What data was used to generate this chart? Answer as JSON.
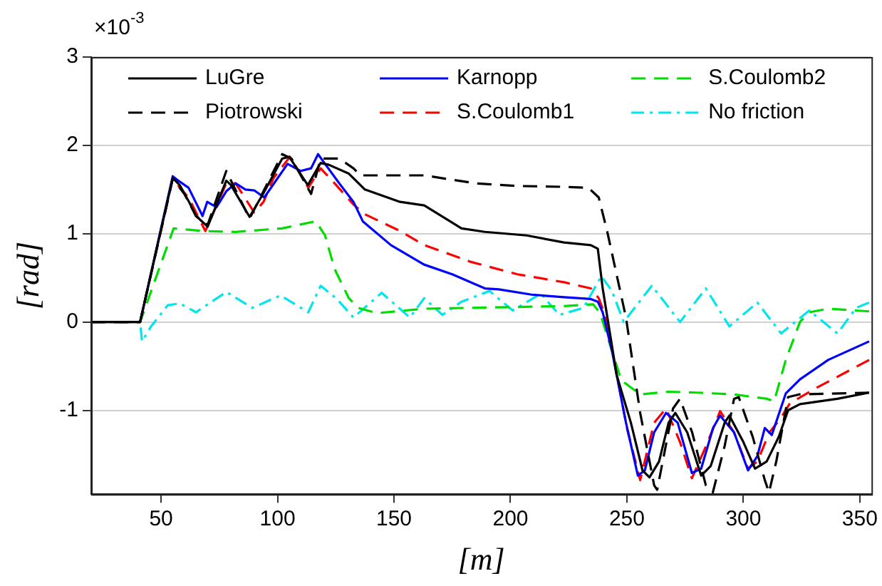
{
  "chart_data": {
    "type": "line",
    "xlabel": "[m]",
    "ylabel": "[rad]",
    "annotations": [
      "×10$^{-3}$"
    ],
    "xlim": [
      20,
      355
    ],
    "xticks": [
      50,
      100,
      150,
      200,
      250,
      300,
      350
    ],
    "ylim": [
      -1.95,
      3
    ],
    "yticks": [
      -1,
      0,
      1,
      2,
      3
    ],
    "grid": "y",
    "legend": "top",
    "marker": "none",
    "series": [
      {
        "name": "LuGre",
        "color": "#000000",
        "line_style": "solid",
        "x": [
          20,
          41,
          55,
          58,
          62,
          65,
          70,
          78,
          80,
          88,
          94,
          102,
          105,
          110,
          113,
          118.5,
          122,
          130.6,
          137.5,
          152.6,
          163,
          179,
          189,
          207,
          223,
          234.5,
          237.5,
          239.6,
          245.6,
          251.7,
          256.7,
          259.7,
          263.8,
          267.9,
          270.8,
          275.9,
          281.9,
          286,
          292,
          294,
          300,
          305,
          310,
          315.2,
          319.2,
          324.3,
          340.4,
          354
        ],
        "values": [
          0,
          0,
          1.63,
          1.55,
          1.36,
          1.2,
          1.08,
          1.6,
          1.55,
          1.19,
          1.46,
          1.85,
          1.87,
          1.67,
          1.55,
          1.8,
          1.78,
          1.68,
          1.5,
          1.36,
          1.32,
          1.06,
          1.02,
          0.98,
          0.9,
          0.87,
          0.83,
          0.38,
          -0.6,
          -1.14,
          -1.68,
          -1.76,
          -1.58,
          -1.14,
          -1.03,
          -1.25,
          -1.74,
          -1.63,
          -1.14,
          -1.06,
          -1.36,
          -1.66,
          -1.58,
          -1.3,
          -1.0,
          -0.93,
          -0.87,
          -0.8
        ]
      },
      {
        "name": "Piotrowski",
        "color": "#000000",
        "line_style": "dashed",
        "x": [
          20,
          41,
          55,
          60,
          65,
          70,
          78,
          88,
          102,
          106,
          114.4,
          118.5,
          126.5,
          132.6,
          135.6,
          163,
          175,
          185,
          203,
          223,
          233.5,
          237.9,
          241.5,
          249.6,
          255.7,
          261.7,
          263,
          269.8,
          272.8,
          278,
          283.9,
          286.9,
          292,
          296,
          298,
          304,
          309.2,
          311,
          314.2,
          319.2,
          324,
          354
        ],
        "values": [
          0,
          0,
          1.62,
          1.45,
          1.2,
          1.1,
          1.71,
          1.17,
          1.9,
          1.85,
          1.45,
          1.85,
          1.85,
          1.74,
          1.66,
          1.66,
          1.61,
          1.57,
          1.54,
          1.53,
          1.52,
          1.41,
          1.03,
          0.05,
          -1.03,
          -1.85,
          -1.9,
          -0.98,
          -0.87,
          -1.25,
          -1.85,
          -1.93,
          -1.4,
          -0.87,
          -0.85,
          -1.3,
          -1.79,
          -1.93,
          -1.57,
          -0.85,
          -0.82,
          -0.8
        ]
      },
      {
        "name": "Karnopp",
        "color": "#0000ff",
        "line_style": "solid",
        "x": [
          20,
          41,
          55,
          57.4,
          61.8,
          64.8,
          67.8,
          69.8,
          73.8,
          78,
          82,
          86.2,
          90,
          94.3,
          104.3,
          110,
          114.4,
          117.4,
          120.4,
          126.5,
          132.6,
          136.6,
          148.7,
          162.9,
          175,
          189,
          195,
          209,
          223,
          234.5,
          237.5,
          239.6,
          243.6,
          249.6,
          254.7,
          257.7,
          261.7,
          266.8,
          271.8,
          277.9,
          281.9,
          287,
          290,
          296,
          302,
          306,
          309.2,
          312.2,
          318.2,
          324.3,
          336.4,
          354
        ],
        "values": [
          0,
          0,
          1.65,
          1.6,
          1.52,
          1.36,
          1.2,
          1.36,
          1.3,
          1.48,
          1.57,
          1.5,
          1.49,
          1.41,
          1.79,
          1.71,
          1.74,
          1.9,
          1.79,
          1.57,
          1.36,
          1.14,
          0.87,
          0.65,
          0.54,
          0.38,
          0.37,
          0.31,
          0.28,
          0.26,
          0.23,
          0.11,
          -0.33,
          -1.14,
          -1.74,
          -1.68,
          -1.25,
          -1.03,
          -1.14,
          -1.71,
          -1.66,
          -1.2,
          -1.06,
          -1.25,
          -1.68,
          -1.52,
          -1.2,
          -1.28,
          -0.81,
          -0.65,
          -0.43,
          -0.22
        ]
      },
      {
        "name": "S.Coulomb1",
        "color": "#ff0000",
        "line_style": "dashed",
        "x": [
          20,
          41,
          55,
          62,
          69,
          78,
          82,
          90,
          94,
          98.3,
          105.3,
          110,
          113.2,
          118.5,
          124.5,
          132.6,
          137.5,
          152.6,
          163,
          183,
          203,
          223,
          234.5,
          237.9,
          241,
          250,
          255.7,
          261.7,
          266.8,
          272.8,
          277.9,
          283.9,
          290,
          296,
          302,
          306,
          311.2,
          316,
          320,
          330.4,
          354
        ],
        "values": [
          0,
          0,
          1.62,
          1.4,
          1.03,
          1.57,
          1.57,
          1.24,
          1.36,
          1.63,
          1.87,
          1.67,
          1.52,
          1.74,
          1.57,
          1.33,
          1.22,
          1.03,
          0.87,
          0.68,
          0.54,
          0.45,
          0.38,
          0.27,
          0.05,
          -1.2,
          -1.79,
          -1.14,
          -0.98,
          -1.36,
          -1.77,
          -1.41,
          -1.01,
          -1.25,
          -1.66,
          -1.58,
          -1.25,
          -1.09,
          -0.92,
          -0.76,
          -0.43
        ]
      },
      {
        "name": "S.Coulomb2",
        "color": "#00dd00",
        "line_style": "dashed",
        "x": [
          20,
          41,
          49.8,
          55.4,
          67.8,
          82,
          102,
          116.4,
          120.4,
          124.5,
          130.6,
          134.6,
          142.7,
          163,
          203,
          223,
          235.5,
          238.5,
          243.6,
          247.6,
          255.7,
          267.9,
          280,
          296,
          310.2,
          313.2,
          318.2,
          324.3,
          328.3,
          336.4,
          354
        ],
        "values": [
          0,
          0,
          0.65,
          1.06,
          1.03,
          1.02,
          1.06,
          1.14,
          0.98,
          0.6,
          0.27,
          0.16,
          0.1,
          0.15,
          0.17,
          0.18,
          0.2,
          0.1,
          -0.33,
          -0.66,
          -0.82,
          -0.79,
          -0.8,
          -0.82,
          -0.87,
          -0.9,
          -0.43,
          0,
          0.11,
          0.15,
          0.12
        ]
      },
      {
        "name": "No friction",
        "color": "#00e5ee",
        "line_style": "dashdot",
        "x": [
          20,
          41,
          41.8,
          45.7,
          52.9,
          58,
          65,
          78,
          89.2,
          101.3,
          113.2,
          118.5,
          125.5,
          132.6,
          144.7,
          156.8,
          163,
          170.8,
          179,
          191,
          201,
          213,
          221,
          231.4,
          239,
          243.6,
          248.6,
          260.7,
          272.8,
          283.9,
          294,
          306,
          316.2,
          328.3,
          340.4,
          348.4,
          354
        ],
        "values": [
          0,
          0,
          -0.22,
          -0.05,
          0.19,
          0.21,
          0.11,
          0.34,
          0.16,
          0.3,
          0.11,
          0.41,
          0.26,
          0.05,
          0.33,
          0.05,
          0.27,
          0.08,
          0.23,
          0.35,
          0.13,
          0.32,
          0.08,
          0.16,
          0.52,
          0.35,
          0,
          0.41,
          0,
          0.38,
          -0.05,
          0.22,
          -0.13,
          0.13,
          -0.13,
          0.16,
          0.22
        ]
      }
    ]
  }
}
